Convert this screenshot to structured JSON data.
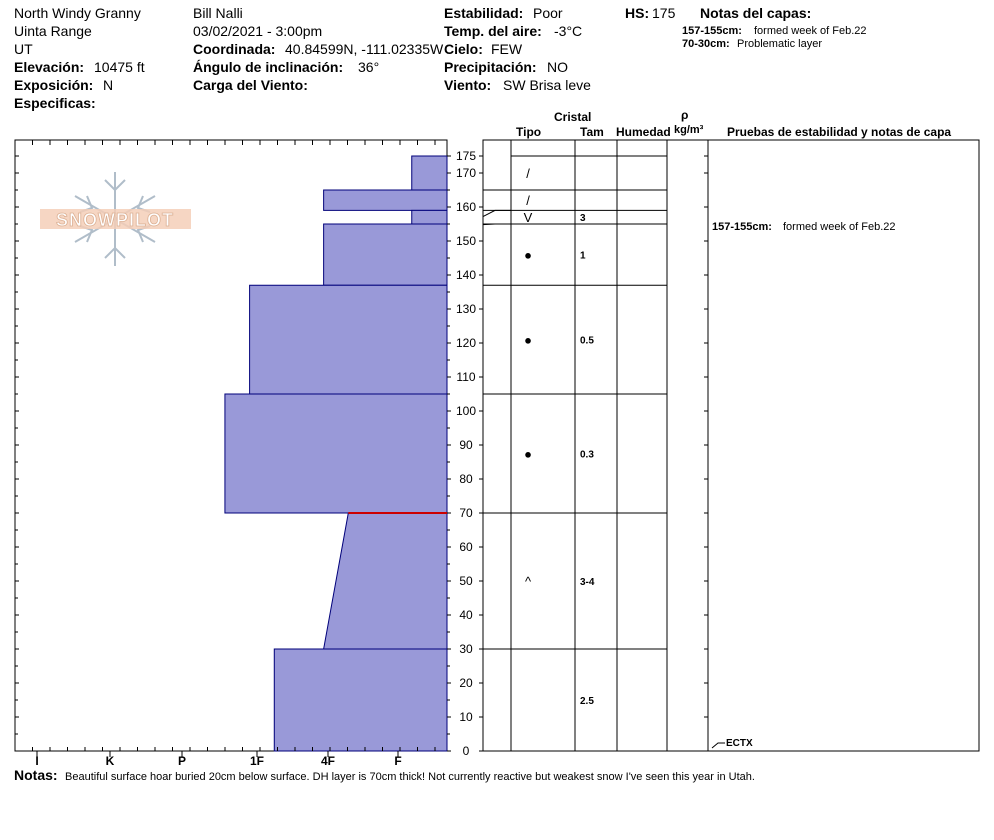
{
  "header": {
    "location": "North Windy Granny",
    "range": "Uinta Range",
    "state": "UT",
    "elevation_label": "Elevación:",
    "elevation": "10475 ft",
    "aspect_label": "Exposición:",
    "aspect": "N",
    "specifics_label": "Especificas:",
    "observer": "Bill Nalli",
    "datetime": "03/02/2021 - 3:00pm",
    "coord_label": "Coordinada:",
    "coord": "40.84599N, -111.02335W",
    "slope_label": "Ángulo de inclinación:",
    "slope": "36°",
    "wind_loading_label": "Carga del Viento:",
    "stability_label": "Estabilidad:",
    "stability": "Poor",
    "air_temp_label": "Temp. del aire:",
    "air_temp": "-3°C",
    "sky_label": "Cielo:",
    "sky": "FEW",
    "precip_label": "Precipitación:",
    "precip": "NO",
    "wind_label": "Viento:",
    "wind": "SW Brisa leve",
    "hs_label": "HS:",
    "hs": "175",
    "layer_notes_title": "Notas del capas:",
    "layer_notes": [
      {
        "range": "157-155cm:",
        "text": "formed week of Feb.22"
      },
      {
        "range": "70-30cm:",
        "text": "Problematic layer"
      }
    ]
  },
  "logo_text": "SNOWPILOT",
  "table_headers": {
    "crystal": "Cristal",
    "type": "Tipo",
    "size": "Tam",
    "moisture": "Humedad",
    "density_symbol": "ρ",
    "density_unit": "kg/m³",
    "tests": "Pruebas de estabilidad y notas de capa"
  },
  "stability_notes": [
    {
      "range": "157-155cm:",
      "text": "formed week of Feb.22",
      "depth": 156
    }
  ],
  "test_result": {
    "label": "ECTX",
    "depth": 0
  },
  "notes_label": "Notas:",
  "notes": "Beautiful surface hoar buried 20cm below surface. DH layer is 70cm thick! Not currently reactive but weakest snow I've seen this year in Utah.",
  "colors": {
    "layer_fill": "#9999d8",
    "layer_stroke": "#00007a",
    "weak_layer": "#cc0000"
  },
  "chart_data": {
    "type": "snow-profile",
    "hs": 175,
    "depth_ticks": [
      0,
      10,
      20,
      30,
      40,
      50,
      60,
      70,
      80,
      90,
      100,
      110,
      120,
      130,
      140,
      150,
      160,
      170,
      175
    ],
    "hardness_scale": [
      "I",
      "K",
      "P",
      "1F",
      "4F",
      "F"
    ],
    "hardness_axis_note": "hardness index: 0=F (right edge) ... 5=I",
    "layers": [
      {
        "top": 175,
        "bottom": 165,
        "hardness_top": 0.5,
        "hardness_bottom": 0.5,
        "grain": "/",
        "size": ""
      },
      {
        "top": 165,
        "bottom": 159,
        "hardness_top": 1.75,
        "hardness_bottom": 1.75,
        "grain": "/",
        "size": ""
      },
      {
        "top": 159,
        "bottom": 155,
        "hardness_top": 0.5,
        "hardness_bottom": 0.5,
        "grain": "V",
        "size": "3"
      },
      {
        "top": 155,
        "bottom": 137,
        "hardness_top": 1.75,
        "hardness_bottom": 1.75,
        "grain": "●",
        "size": "1"
      },
      {
        "top": 137,
        "bottom": 105,
        "hardness_top": 2.8,
        "hardness_bottom": 2.8,
        "grain": "●",
        "size": "0.5"
      },
      {
        "top": 105,
        "bottom": 70,
        "hardness_top": 3.15,
        "hardness_bottom": 3.15,
        "grain": "●",
        "size": "0.3"
      },
      {
        "top": 70,
        "bottom": 30,
        "hardness_top": 1.4,
        "hardness_bottom": 1.75,
        "grain": "^",
        "size": "3-4"
      },
      {
        "top": 30,
        "bottom": 0,
        "hardness_top": 2.45,
        "hardness_bottom": 2.45,
        "grain": "",
        "size": "2.5"
      }
    ],
    "weak_layer_depth": 70
  }
}
